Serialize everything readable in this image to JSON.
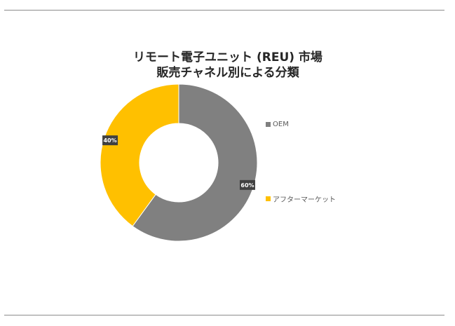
{
  "chart_data": {
    "type": "pie",
    "style": "donut",
    "title": "リモート電子ユニット (REU) 市場",
    "subtitle": "販売チャネル別による分類",
    "categories": [
      "OEM",
      "アフターマーケット"
    ],
    "values": [
      60,
      40
    ],
    "data_labels": [
      "60%",
      "40%"
    ],
    "colors": [
      "#808080",
      "#FFC000"
    ],
    "legend_position": "right"
  }
}
